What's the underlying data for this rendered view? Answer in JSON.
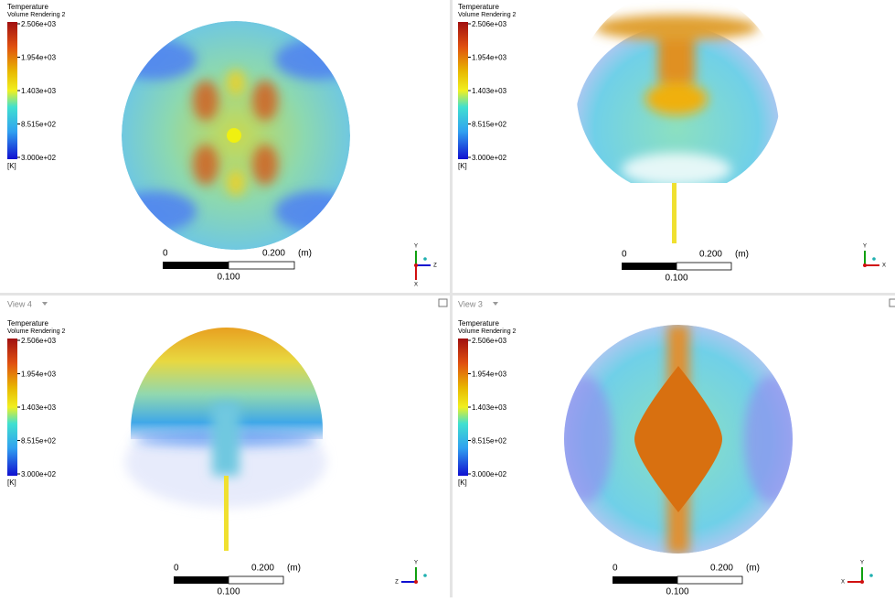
{
  "panels": [
    {
      "legend": {
        "title": "Temperature",
        "subtitle": "Volume Rendering 2",
        "ticks": [
          "2.506e+03",
          "1.954e+03",
          "1.403e+03",
          "8.515e+02",
          "3.000e+02"
        ],
        "unit": "[K]"
      },
      "scale": {
        "start": "0",
        "end": "0.200",
        "unit": "(m)",
        "mid": "0.100"
      },
      "triad": [
        "Y",
        "Z",
        "X"
      ]
    },
    {
      "legend": {
        "title": "Temperature",
        "subtitle": "Volume Rendering 2",
        "ticks": [
          "2.506e+03",
          "1.954e+03",
          "1.403e+03",
          "8.515e+02",
          "3.000e+02"
        ],
        "unit": "[K]"
      },
      "scale": {
        "start": "0",
        "end": "0.200",
        "unit": "(m)",
        "mid": "0.100"
      },
      "triad": [
        "Y",
        "X"
      ]
    },
    {
      "header": "View 4",
      "legend": {
        "title": "Temperature",
        "subtitle": "Volume Rendering 2",
        "ticks": [
          "2.506e+03",
          "1.954e+03",
          "1.403e+03",
          "8.515e+02",
          "3.000e+02"
        ],
        "unit": "[K]"
      },
      "scale": {
        "start": "0",
        "end": "0.200",
        "unit": "(m)",
        "mid": "0.100"
      },
      "triad": [
        "Y",
        "Z"
      ]
    },
    {
      "header": "View 3",
      "legend": {
        "title": "Temperature",
        "subtitle": "Volume Rendering 2",
        "ticks": [
          "2.506e+03",
          "1.954e+03",
          "1.403e+03",
          "8.515e+02",
          "3.000e+02"
        ],
        "unit": "[K]"
      },
      "scale": {
        "start": "0",
        "end": "0.200",
        "unit": "(m)",
        "mid": "0.100"
      },
      "triad": [
        "Y",
        "X"
      ]
    }
  ]
}
